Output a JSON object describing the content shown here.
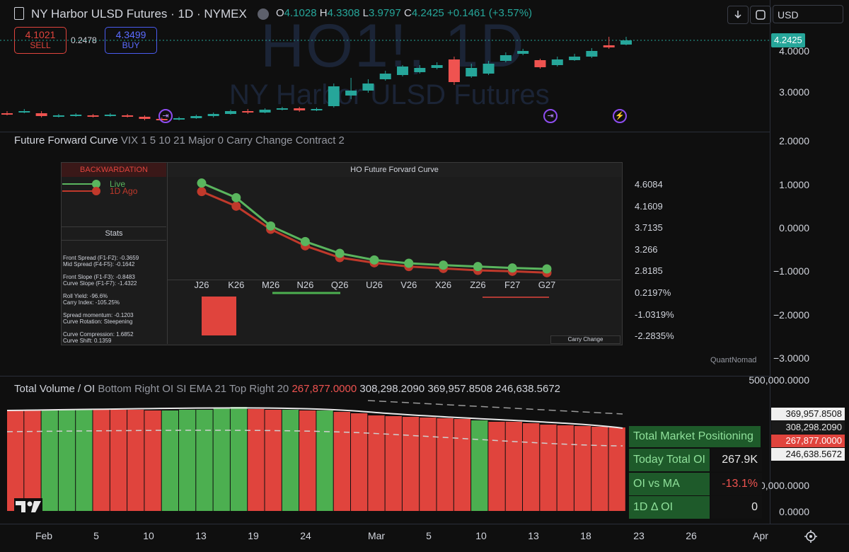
{
  "header": {
    "symbol_title": "NY Harbor ULSD Futures · 1D · NYMEX",
    "o_label": "O",
    "o_value": "4.1028",
    "h_label": "H",
    "h_value": "4.3308",
    "l_label": "L",
    "l_value": "3.9797",
    "c_label": "C",
    "c_value": "4.2425",
    "change": "+0.1461 (+3.57%)",
    "currency": "USD"
  },
  "trade": {
    "sell_price": "4.1021",
    "sell_label": "SELL",
    "spread": "0.2478",
    "buy_price": "4.3499",
    "buy_label": "BUY"
  },
  "watermark": {
    "line1": "HO1!, 1D",
    "line2": "NY Harbor ULSD Futures"
  },
  "main_axis": {
    "labels": [
      "4.0000",
      "3.0000"
    ],
    "last_price": "4.2425"
  },
  "colors": {
    "up": "#26a69a",
    "down": "#ef5350",
    "green_bar": "#4caf50",
    "red_bar": "#e0443d",
    "live": "#5ab55e",
    "ago": "#c0392b"
  },
  "forward_indicator": {
    "title": "Future Forward Curve",
    "params": "VIX 1 5 10 21 Major 0 Carry Change Contract 2",
    "axis_labels": [
      "2.0000",
      "1.0000",
      "0.0000",
      "−1.0000",
      "−2.0000",
      "−3.0000"
    ],
    "credit": "QuantNomad",
    "regime": "BACKWARDATION",
    "chart_title": "HO Future Forvard Curve",
    "legend_live": "Live",
    "legend_ago": "1D Ago",
    "stats_title": "Stats",
    "stats": [
      "Front Spread (F1-F2): -0.3659",
      "Mid Spread (F4-F5): -0.1642",
      "",
      "Front Slope (F1-F3): -0.8483",
      "Curve Slope (F1-F7): -1.4322",
      "",
      "Roll Yield: -96.6%",
      "Carry Index: -105.25%",
      "",
      "Spread momentum: -0.1203",
      "Curve Rotation: Steepening",
      "",
      "Curve Compression: 1.6852",
      "Curve Shift: 0.1359"
    ],
    "price_labels": [
      "4.6084",
      "4.1609",
      "3.7135",
      "3.266",
      "2.8185"
    ],
    "pct_labels": [
      "0.2197%",
      "-1.0319%",
      "-2.2835%"
    ],
    "carry_label": "Carry Change"
  },
  "chart_data": {
    "type": "line",
    "title": "HO Future Forvard Curve",
    "categories": [
      "J26",
      "K26",
      "M26",
      "N26",
      "Q26",
      "U26",
      "V26",
      "X26",
      "Z26",
      "F27",
      "G27"
    ],
    "series": [
      {
        "name": "Live",
        "values": [
          4.62,
          4.31,
          3.71,
          3.38,
          3.13,
          2.99,
          2.92,
          2.88,
          2.85,
          2.82,
          2.8
        ]
      },
      {
        "name": "1D Ago",
        "values": [
          4.44,
          4.13,
          3.64,
          3.29,
          3.04,
          2.93,
          2.85,
          2.81,
          2.77,
          2.75,
          2.72
        ]
      }
    ],
    "ylim": [
      2.65,
      4.75
    ],
    "grid": false
  },
  "volume_indicator": {
    "title": "Total Volume / OI",
    "params": "Bottom Right OI SI EMA 21 Top Right 20",
    "v1": "267,877.0000",
    "v2": "308,298.2090",
    "v3": "369,957.8508",
    "v4": "246,638.5672",
    "axis_labels": [
      "500,000.0000",
      "100,000.0000",
      "0.0000"
    ],
    "tags": [
      "369,957.8508",
      "308,298.2090",
      "267,877.0000",
      "246,638.5672"
    ],
    "bars": [
      "d",
      "d",
      "u",
      "u",
      "u",
      "d",
      "d",
      "d",
      "d",
      "u",
      "u",
      "u",
      "u",
      "u",
      "d",
      "d",
      "u",
      "d",
      "u",
      "d",
      "d",
      "d",
      "d",
      "d",
      "d",
      "d",
      "d",
      "u",
      "d",
      "d",
      "d",
      "d",
      "d",
      "d",
      "d",
      "d"
    ],
    "positioning_title": "Total Market Positioning",
    "rows": [
      {
        "label": "Today Total OI",
        "value": "267.9K"
      },
      {
        "label": "OI vs MA",
        "value": "-13.1%"
      },
      {
        "label": "1D Δ OI",
        "value": "0"
      }
    ]
  },
  "x_axis": {
    "labels": [
      "Feb",
      "5",
      "10",
      "13",
      "19",
      "24",
      "Mar",
      "5",
      "10",
      "13",
      "18",
      "23",
      "26",
      "Apr"
    ]
  }
}
